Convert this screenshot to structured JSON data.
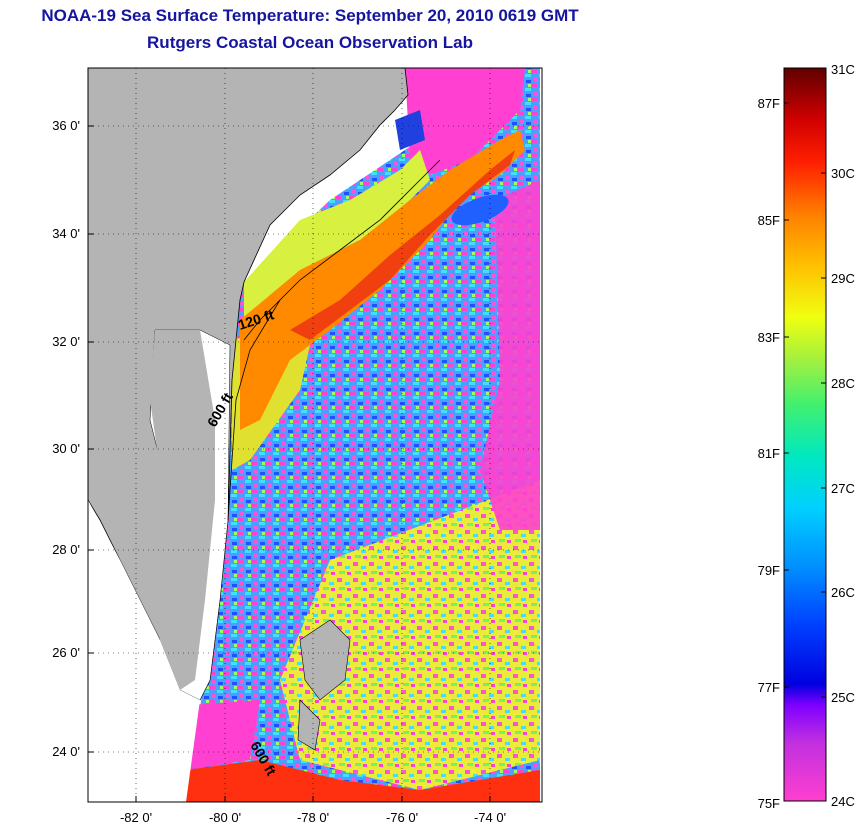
{
  "header": {
    "title": "NOAA-19 Sea Surface Temperature:  September 20, 2010 0619 GMT",
    "subtitle": "Rutgers Coastal Ocean Observation Lab"
  },
  "map": {
    "lat_ticks": [
      "36 0'",
      "34 0'",
      "32 0'",
      "30 0'",
      "28 0'",
      "26 0'",
      "24 0'"
    ],
    "lon_ticks": [
      "-82 0'",
      "-80 0'",
      "-78 0'",
      "-76 0'",
      "-74 0'"
    ],
    "contour_labels": [
      "120 ft",
      "600 ft",
      "600 ft"
    ]
  },
  "colorbar": {
    "celsius_labels": [
      "31C",
      "30C",
      "29C",
      "28C",
      "27C",
      "26C",
      "25C",
      "24C"
    ],
    "fahrenheit_labels": [
      "87F",
      "85F",
      "83F",
      "81F",
      "79F",
      "77F",
      "75F"
    ],
    "colors": [
      "#ff3fd0",
      "#8000ff",
      "#0000e0",
      "#0060ff",
      "#00c0ff",
      "#00e8c0",
      "#60f060",
      "#e0ff20",
      "#ffc000",
      "#ff6000",
      "#e00000",
      "#600000"
    ]
  }
}
